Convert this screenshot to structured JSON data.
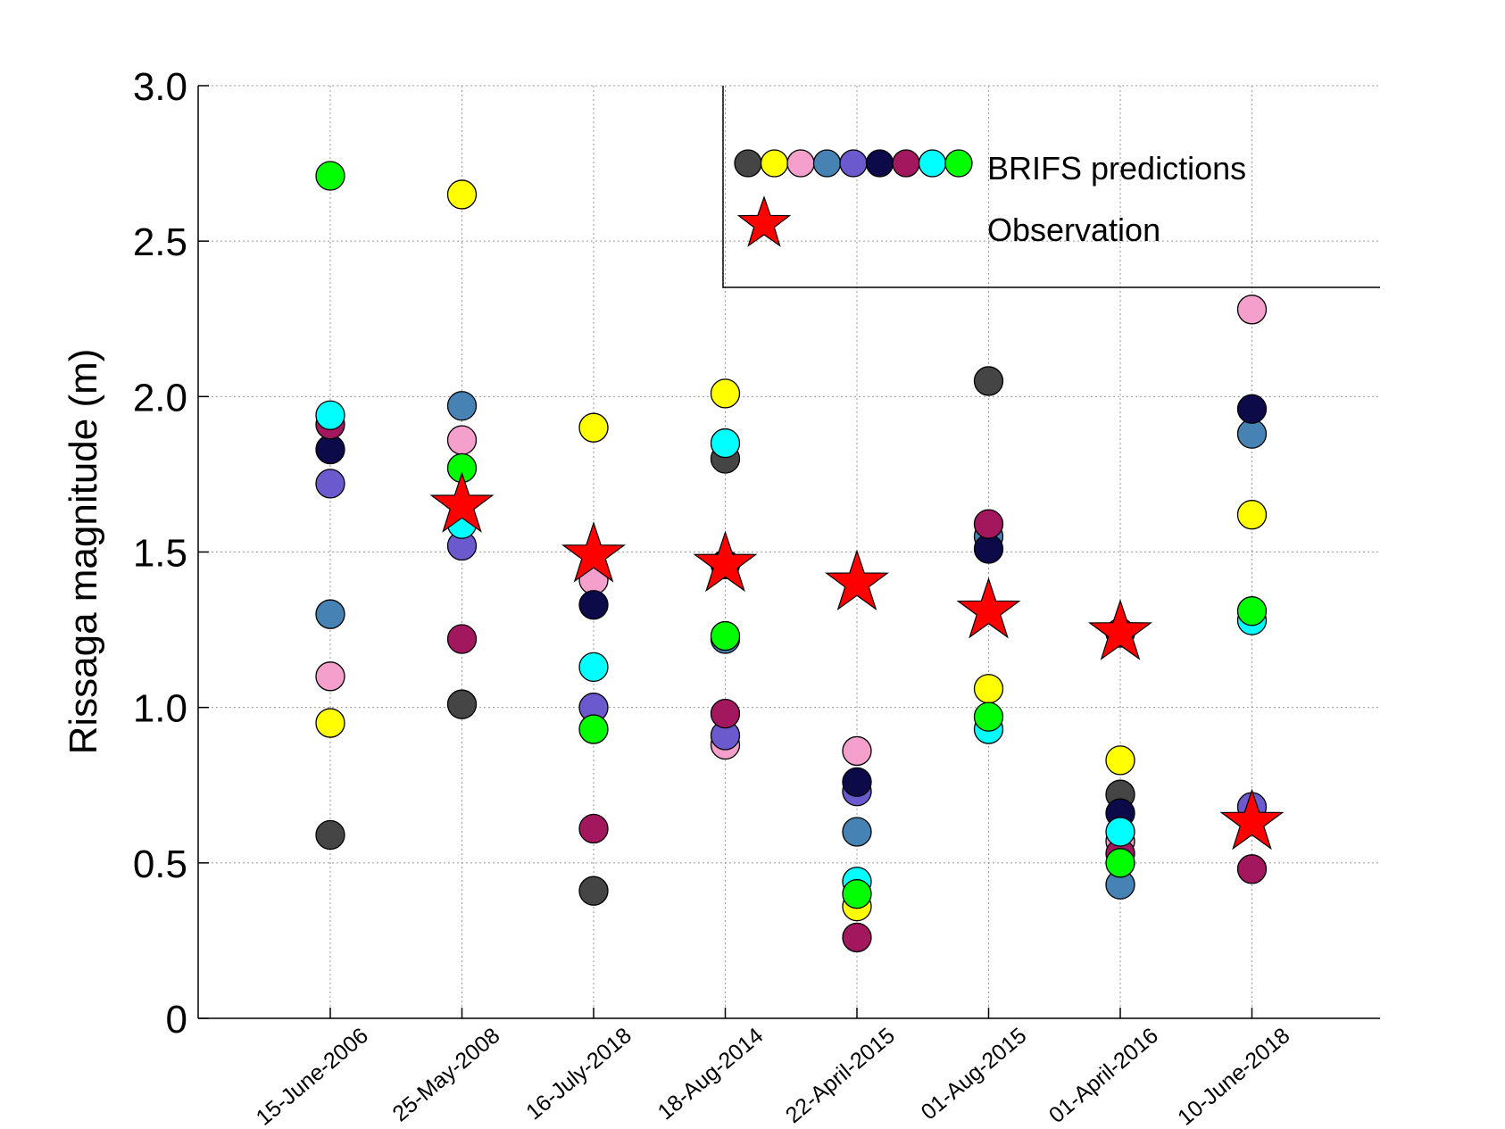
{
  "chart_data": {
    "type": "scatter",
    "title": "",
    "xlabel": "",
    "ylabel": "Rissaga magnitude (m)",
    "ylim": [
      0,
      3.0
    ],
    "y_ticks": [
      "0",
      "0.5",
      "1.0",
      "1.5",
      "2.0",
      "2.5",
      "3.0"
    ],
    "categories": [
      "15-June-2006",
      "25-May-2008",
      "16-July-2018",
      "18-Aug-2014",
      "22-April-2015",
      "01-Aug-2015",
      "01-April-2016",
      "10-June-2018"
    ],
    "grid": true,
    "legend_position": "top-right",
    "legend": {
      "predictions_label": "BRIFS predictions",
      "observation_label": "Observation"
    },
    "series": [
      {
        "color": "#454545",
        "values": [
          0.59,
          1.01,
          0.41,
          1.8,
          null,
          2.05,
          0.72,
          null
        ]
      },
      {
        "color": "#ffff00",
        "values": [
          0.95,
          2.65,
          1.9,
          2.01,
          0.36,
          1.06,
          0.83,
          1.62
        ]
      },
      {
        "color": "#f59fcc",
        "values": [
          1.1,
          1.86,
          1.41,
          0.88,
          0.86,
          null,
          0.57,
          2.28
        ]
      },
      {
        "color": "#4682b4",
        "values": [
          1.3,
          1.97,
          null,
          1.22,
          0.6,
          1.55,
          0.43,
          1.88
        ]
      },
      {
        "color": "#6a5acd",
        "values": [
          1.72,
          1.52,
          1.0,
          0.91,
          0.73,
          null,
          1.24,
          0.68
        ]
      },
      {
        "color": "#0d0a4a",
        "values": [
          1.83,
          null,
          1.33,
          1.46,
          0.76,
          1.51,
          0.66,
          1.96
        ]
      },
      {
        "color": "#a3175e",
        "values": [
          1.91,
          1.22,
          0.61,
          0.98,
          0.26,
          1.59,
          0.53,
          0.48
        ]
      },
      {
        "color": "#00ffff",
        "values": [
          1.94,
          1.59,
          1.13,
          1.85,
          0.44,
          0.93,
          0.6,
          1.28
        ]
      },
      {
        "color": "#00ff00",
        "values": [
          2.71,
          1.77,
          0.93,
          1.23,
          0.4,
          0.97,
          0.5,
          1.31
        ]
      }
    ],
    "observation": {
      "color": "#ff0000",
      "values": [
        null,
        1.65,
        1.49,
        1.46,
        1.4,
        1.31,
        1.24,
        0.63
      ]
    }
  }
}
